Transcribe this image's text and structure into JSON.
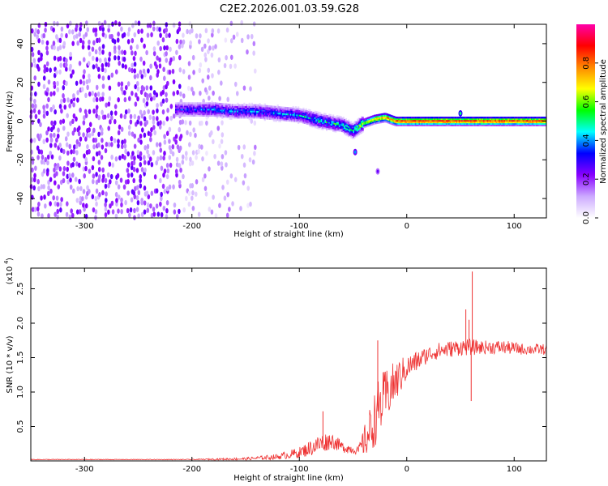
{
  "title": "C2E2.2026.001.03.59.G28",
  "chart_data": [
    {
      "type": "heatmap",
      "name": "spectrogram",
      "xlabel": "Height of straight line (km)",
      "ylabel": "Frequency (Hz)",
      "xlim": [
        -350,
        130
      ],
      "ylim": [
        -50,
        50
      ],
      "xticks": [
        -300,
        -200,
        -100,
        0,
        100
      ],
      "yticks": [
        -40,
        -20,
        0,
        20,
        40
      ],
      "xtick_labels": [
        "-300",
        "-200",
        "-100",
        "0",
        "100"
      ],
      "ytick_labels": [
        "-40",
        "-20",
        "0",
        "20",
        "40"
      ],
      "colorbar": {
        "label": "Normalized spectral amplitude",
        "range": [
          0,
          1
        ],
        "ticks": [
          0.0,
          0.2,
          0.4,
          0.6,
          0.8
        ],
        "tick_labels": [
          "0.0",
          "0.2",
          "0.4",
          "0.6",
          "0.8"
        ],
        "colormap": [
          "#ffffff",
          "#ccaaff",
          "#8800ff",
          "#0000ff",
          "#00ffff",
          "#00ff00",
          "#ffff00",
          "#ff8800",
          "#ff0000",
          "#ff00aa"
        ]
      },
      "noise_region_km": [
        -350,
        -140
      ],
      "signal_track": {
        "x": [
          -215,
          -200,
          -180,
          -160,
          -140,
          -120,
          -100,
          -80,
          -60,
          -50,
          -45,
          -40,
          -35,
          -30,
          -20,
          -10,
          0,
          20,
          40,
          60,
          80,
          100,
          130
        ],
        "freq": [
          6,
          6,
          6,
          5,
          5,
          4,
          3,
          0,
          -2,
          -5,
          -3,
          -1,
          0,
          1,
          2,
          0,
          0,
          0,
          0,
          0,
          0,
          0,
          0
        ],
        "amplitude": [
          0.35,
          0.35,
          0.4,
          0.4,
          0.4,
          0.4,
          0.45,
          0.5,
          0.5,
          0.55,
          0.6,
          0.65,
          0.75,
          0.8,
          0.85,
          0.9,
          0.95,
          0.95,
          0.95,
          0.95,
          0.95,
          0.95,
          0.95
        ]
      },
      "isolated_blobs": [
        {
          "x": -48,
          "freq": -16,
          "amplitude": 0.4
        },
        {
          "x": -27,
          "freq": -26,
          "amplitude": 0.25
        },
        {
          "x": 50,
          "freq": 4,
          "amplitude": 0.5
        }
      ]
    },
    {
      "type": "line",
      "name": "snr",
      "xlabel": "Height of straight line (km)",
      "ylabel": "SNR (10 * v/v)",
      "scale_label": "(x10",
      "scale_exponent": "4",
      "xlim": [
        -350,
        130
      ],
      "ylim": [
        0,
        2.8
      ],
      "xticks": [
        -300,
        -200,
        -100,
        0,
        100
      ],
      "yticks": [
        0.5,
        1.0,
        1.5,
        2.0,
        2.5
      ],
      "xtick_labels": [
        "-300",
        "-200",
        "-100",
        "0",
        "100"
      ],
      "ytick_labels": [
        "0.5",
        "1.0",
        "1.5",
        "2.0",
        "2.5"
      ],
      "line_color": "#ee3333",
      "envelope": {
        "x": [
          -350,
          -200,
          -150,
          -120,
          -100,
          -80,
          -70,
          -60,
          -45,
          -35,
          -25,
          -15,
          -5,
          0,
          10,
          20,
          30,
          50,
          60,
          70,
          90,
          110,
          130
        ],
        "base": [
          0.02,
          0.02,
          0.03,
          0.06,
          0.12,
          0.25,
          0.3,
          0.2,
          0.15,
          0.4,
          0.8,
          1.05,
          1.25,
          1.35,
          1.45,
          1.55,
          1.6,
          1.65,
          1.65,
          1.65,
          1.65,
          1.62,
          1.62
        ],
        "noise": [
          0.005,
          0.005,
          0.02,
          0.04,
          0.08,
          0.15,
          0.12,
          0.08,
          0.06,
          0.35,
          0.45,
          0.35,
          0.25,
          0.18,
          0.15,
          0.12,
          0.12,
          0.12,
          0.12,
          0.1,
          0.1,
          0.08,
          0.08
        ]
      },
      "spikes": [
        {
          "x": -27,
          "y": 1.75
        },
        {
          "x": -78,
          "y": 0.72
        },
        {
          "x": 55,
          "y": 2.2
        },
        {
          "x": 58,
          "y": 2.05
        },
        {
          "x": 61,
          "y": 2.75
        },
        {
          "x": 60,
          "y": 0.87
        }
      ]
    }
  ]
}
